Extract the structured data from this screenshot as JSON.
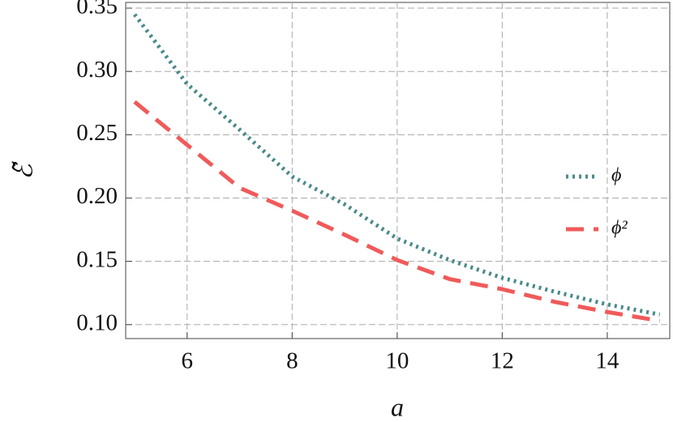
{
  "chart_data": {
    "type": "line",
    "x_label": "a",
    "y_label": "ℰ̃",
    "x": [
      5,
      6,
      7,
      8,
      9,
      10,
      11,
      12,
      13,
      14,
      15
    ],
    "series": [
      {
        "name": "ϕ",
        "color": "#4a8a8a",
        "dash": "dotted",
        "values": [
          0.345,
          0.29,
          0.254,
          0.217,
          0.195,
          0.168,
          0.151,
          0.137,
          0.126,
          0.116,
          0.108
        ]
      },
      {
        "name": "ϕ²",
        "color": "#f05a5a",
        "dash": "dashed",
        "values": [
          0.276,
          0.242,
          0.208,
          0.19,
          0.171,
          0.151,
          0.136,
          0.128,
          0.118,
          0.11,
          0.103
        ]
      }
    ],
    "xlim": [
      4.83,
      15.19
    ],
    "ylim": [
      0.089,
      0.3545
    ],
    "xticks": [
      6,
      8,
      10,
      12,
      14
    ],
    "yticks": [
      {
        "value": 0.1,
        "label": "0.10"
      },
      0.15,
      {
        "value": 0.2,
        "label": "0.20"
      },
      0.25,
      {
        "value": 0.3,
        "label": "0.30"
      },
      0.35
    ],
    "grid": true,
    "legend": "right"
  }
}
